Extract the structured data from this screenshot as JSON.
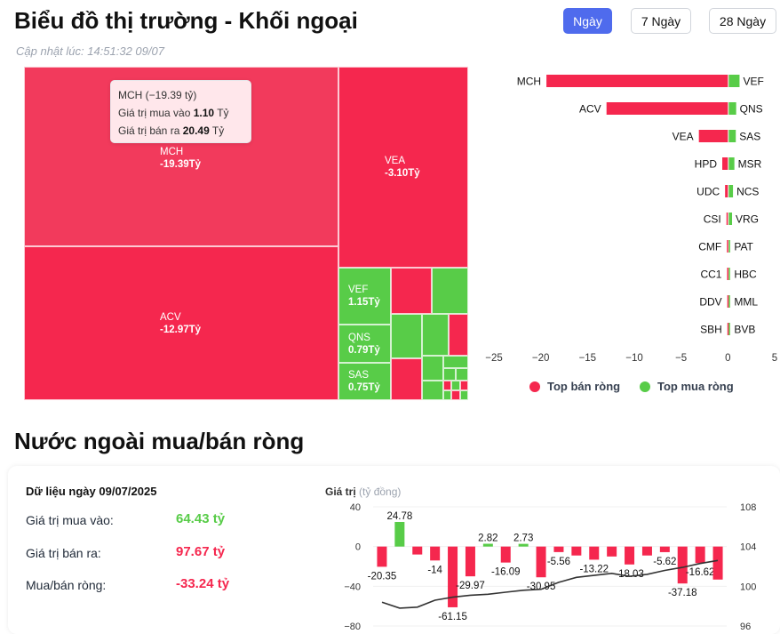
{
  "header": {
    "title": "Biểu đồ thị trường - Khối ngoại",
    "updated": "Cập nhật lúc: 14:51:32 09/07",
    "periods": [
      {
        "label": "Ngày",
        "active": true
      },
      {
        "label": "7 Ngày",
        "active": false
      },
      {
        "label": "28 Ngày",
        "active": false
      }
    ]
  },
  "colors": {
    "sell": "#f5274e",
    "sell_light": "#f23a5c",
    "buy": "#58cc48",
    "accent": "#4f6bed",
    "line": "#333333"
  },
  "treemap": {
    "labeled_tiles": [
      {
        "code": "MCH",
        "value": "-19.39Tỷ"
      },
      {
        "code": "VEA",
        "value": "-3.10Tỷ"
      },
      {
        "code": "ACV",
        "value": "-12.97Tỷ"
      },
      {
        "code": "VEF",
        "value": "1.15Tỷ"
      },
      {
        "code": "QNS",
        "value": "0.79Tỷ"
      },
      {
        "code": "SAS",
        "value": "0.75Tỷ"
      }
    ],
    "tooltip": {
      "title": "MCH (−19.39 tỷ)",
      "buy_label": "Giá trị mua vào",
      "buy_value": "1.10",
      "sell_label": "Giá trị bán ra",
      "sell_value": "20.49",
      "unit": "Tỷ"
    }
  },
  "top_chart": {
    "type": "bar",
    "sell_codes": [
      "MCH",
      "ACV",
      "VEA",
      "HPD",
      "UDC",
      "CSI",
      "CMF",
      "CC1",
      "DDV",
      "SBH"
    ],
    "sell_values": [
      -19.39,
      -12.97,
      -3.1,
      -0.6,
      -0.3,
      -0.15,
      -0.1,
      -0.08,
      -0.06,
      -0.05
    ],
    "buy_codes": [
      "VEF",
      "QNS",
      "SAS",
      "MSR",
      "NCS",
      "VRG",
      "PAT",
      "HBC",
      "MML",
      "BVB"
    ],
    "buy_values": [
      1.15,
      0.79,
      0.75,
      0.6,
      0.45,
      0.35,
      0.15,
      0.1,
      0.08,
      0.06
    ],
    "xticks": [
      "−25",
      "−20",
      "−15",
      "−10",
      "−5",
      "0",
      "5"
    ],
    "xlim": [
      -25,
      5
    ],
    "legend_sell": "Top bán ròng",
    "legend_buy": "Top mua ròng"
  },
  "net_section": {
    "title": "Nước ngoài mua/bán ròng",
    "date_heading": "Dữ liệu ngày 09/07/2025",
    "rows": [
      {
        "label": "Giá trị mua vào:",
        "value": "64.43 tỷ",
        "tone": "buy"
      },
      {
        "label": "Giá trị bán ra:",
        "value": "97.67 tỷ",
        "tone": "sell"
      },
      {
        "label": "Mua/bán ròng:",
        "value": "-33.24 tỷ",
        "tone": "sell"
      }
    ]
  },
  "chart_data": {
    "type": "bar",
    "title": "",
    "ylabel": "Giá trị",
    "ylabel_unit": "(tỷ đồng)",
    "ylim": [
      -80,
      40
    ],
    "yticks": [
      "40",
      "0",
      "−40",
      "−80"
    ],
    "y2lim": [
      96,
      108
    ],
    "y2ticks": [
      "108",
      "104",
      "100",
      "96"
    ],
    "values": [
      -20.35,
      24.78,
      -8,
      -14,
      -61.15,
      -29.97,
      2.82,
      -16.09,
      2.73,
      -30.95,
      -5.56,
      -9,
      -13.22,
      -10,
      -18.03,
      -9,
      -5.62,
      -37.18,
      -16.62,
      -33.24
    ],
    "data_labels": [
      "-20.35",
      "24.78",
      "",
      "-14",
      "-61.15",
      "-29.97",
      "2.82",
      "-16.09",
      "2.73",
      "-30.95",
      "-5.56",
      "",
      "-13.22",
      "",
      "-18.03",
      "",
      "-5.62",
      "-37.18",
      "-16.62",
      ""
    ],
    "index_line": [
      98.4,
      97.8,
      97.9,
      98.6,
      98.9,
      99.1,
      99.2,
      99.4,
      99.6,
      99.7,
      100.4,
      100.9,
      101.1,
      101.3,
      101.0,
      101.2,
      101.6,
      101.9,
      102.3,
      102.6
    ]
  }
}
